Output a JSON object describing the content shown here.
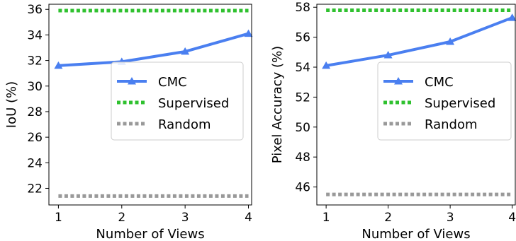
{
  "chart_data": [
    {
      "type": "line",
      "xlabel": "Number of Views",
      "ylabel": "IoU (%)",
      "x": [
        1,
        2,
        3,
        4
      ],
      "xlim": [
        0.85,
        4.05
      ],
      "ylim": [
        20.7,
        36.4
      ],
      "yticks": [
        22,
        24,
        26,
        28,
        30,
        32,
        34,
        36
      ],
      "legend_position": "center-right",
      "series": [
        {
          "name": "CMC",
          "values": [
            31.6,
            31.9,
            32.7,
            34.1
          ],
          "color": "#4a7ff0",
          "style": "solid-triangle"
        },
        {
          "name": "Supervised",
          "values": [
            35.9,
            35.9,
            35.9,
            35.9
          ],
          "color": "#2fc12f",
          "style": "dotted"
        },
        {
          "name": "Random",
          "values": [
            21.4,
            21.4,
            21.4,
            21.4
          ],
          "color": "#999999",
          "style": "dotted"
        }
      ]
    },
    {
      "type": "line",
      "xlabel": "Number of Views",
      "ylabel": "Pixel Accuracy (%)",
      "x": [
        1,
        2,
        3,
        4
      ],
      "xlim": [
        0.85,
        4.05
      ],
      "ylim": [
        44.8,
        58.2
      ],
      "yticks": [
        46,
        48,
        50,
        52,
        54,
        56,
        58
      ],
      "legend_position": "center-right",
      "series": [
        {
          "name": "CMC",
          "values": [
            54.1,
            54.8,
            55.7,
            57.3
          ],
          "color": "#4a7ff0",
          "style": "solid-triangle"
        },
        {
          "name": "Supervised",
          "values": [
            57.8,
            57.8,
            57.8,
            57.8
          ],
          "color": "#2fc12f",
          "style": "dotted"
        },
        {
          "name": "Random",
          "values": [
            45.5,
            45.5,
            45.5,
            45.5
          ],
          "color": "#999999",
          "style": "dotted"
        }
      ]
    }
  ]
}
